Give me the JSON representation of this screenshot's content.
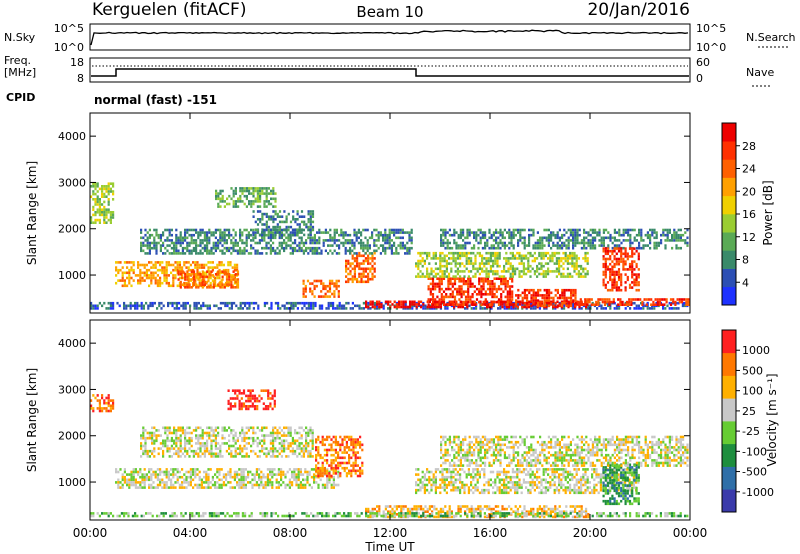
{
  "header": {
    "station": "Kerguelen (fitACF)",
    "beam": "Beam 10",
    "date": "20/Jan/2016"
  },
  "panels": {
    "noise": {
      "left_label": "N.Sky",
      "right_label": "N.Search",
      "left_ticks": [
        "10^5",
        "10^0"
      ],
      "right_ticks": [
        "10^5",
        "10^0"
      ]
    },
    "freq": {
      "left_label_1": "Freq.",
      "left_label_2": "[MHz]",
      "right_label": "Nave",
      "left_ticks": [
        "18",
        "8"
      ],
      "right_ticks": [
        "60",
        "0"
      ]
    },
    "cpid": {
      "label": "CPID",
      "value": "normal (fast) -151"
    }
  },
  "chart_data": [
    {
      "type": "heatmap",
      "name": "power",
      "ylabel": "Slant Range [km]",
      "ylim": [
        180,
        4500
      ],
      "yticks": [
        "1000",
        "2000",
        "3000",
        "4000"
      ],
      "xlim": [
        0,
        24
      ],
      "colorbar": {
        "label": "Power [dB]",
        "ticks": [
          "28",
          "24",
          "20",
          "16",
          "12",
          "8",
          "4"
        ],
        "colors": [
          "#1e32ff",
          "#2c4fb4",
          "#3a8a6a",
          "#5aaa55",
          "#9acd32",
          "#f0d000",
          "#ffa000",
          "#ff6000",
          "#ff3000",
          "#ee0000"
        ]
      },
      "regions": [
        {
          "t": [
            0.0,
            24.0
          ],
          "r": [
            200,
            420
          ],
          "level": 1
        },
        {
          "t": [
            11.0,
            20.0
          ],
          "r": [
            250,
            450
          ],
          "level": 9
        },
        {
          "t": [
            13.5,
            17.0
          ],
          "r": [
            300,
            950
          ],
          "level": 8
        },
        {
          "t": [
            17.0,
            19.5
          ],
          "r": [
            300,
            700
          ],
          "level": 8
        },
        {
          "t": [
            19.5,
            24.0
          ],
          "r": [
            300,
            500
          ],
          "level": 8
        },
        {
          "t": [
            1.0,
            6.0
          ],
          "r": [
            700,
            1300
          ],
          "level": 6
        },
        {
          "t": [
            3.5,
            6.0
          ],
          "r": [
            700,
            1100
          ],
          "level": 7
        },
        {
          "t": [
            8.5,
            10.0
          ],
          "r": [
            500,
            900
          ],
          "level": 7
        },
        {
          "t": [
            10.2,
            11.5
          ],
          "r": [
            800,
            1500
          ],
          "level": 7
        },
        {
          "t": [
            13.0,
            20.0
          ],
          "r": [
            900,
            1500
          ],
          "level": 4
        },
        {
          "t": [
            5.0,
            7.5
          ],
          "r": [
            2400,
            2900
          ],
          "level": 3
        },
        {
          "t": [
            0.0,
            1.0
          ],
          "r": [
            2100,
            3000
          ],
          "level": 4
        },
        {
          "t": [
            6.5,
            9.0
          ],
          "r": [
            1800,
            2400
          ],
          "level": 2
        },
        {
          "t": [
            2.0,
            13.0
          ],
          "r": [
            1400,
            2000
          ],
          "level": 2
        },
        {
          "t": [
            14.0,
            24.0
          ],
          "r": [
            1500,
            2000
          ],
          "level": 2
        },
        {
          "t": [
            20.5,
            22.0
          ],
          "r": [
            600,
            1600
          ],
          "level": 8
        }
      ]
    },
    {
      "type": "heatmap",
      "name": "velocity",
      "ylabel": "Slant Range [km]",
      "ylim": [
        180,
        4500
      ],
      "yticks": [
        "1000",
        "2000",
        "3000",
        "4000"
      ],
      "xlabel": "Time UT",
      "xlim": [
        0,
        24
      ],
      "xticks": [
        "00:00",
        "04:00",
        "08:00",
        "12:00",
        "16:00",
        "20:00",
        "00:00"
      ],
      "colorbar": {
        "label": "Velocity [m s⁻¹]",
        "ticks": [
          "1000",
          "500",
          "100",
          "25",
          "-25",
          "-100",
          "-500",
          "-1000"
        ],
        "colors": [
          "#3a3aaa",
          "#2f6fa8",
          "#1e8e3e",
          "#66cc33",
          "#c8c8c8",
          "#ffb000",
          "#ff7800",
          "#ff2020"
        ]
      },
      "regions": [
        {
          "t": [
            11.0,
            20.0
          ],
          "r": [
            200,
            500
          ],
          "level": 5
        },
        {
          "t": [
            0.0,
            24.0
          ],
          "r": [
            200,
            350
          ],
          "level": 3
        },
        {
          "t": [
            1.0,
            10.0
          ],
          "r": [
            800,
            1300
          ],
          "level": 4
        },
        {
          "t": [
            13.0,
            22.0
          ],
          "r": [
            700,
            1300
          ],
          "level": 4
        },
        {
          "t": [
            0.0,
            1.0
          ],
          "r": [
            2500,
            2900
          ],
          "level": 6
        },
        {
          "t": [
            5.5,
            7.5
          ],
          "r": [
            2500,
            3000
          ],
          "level": 7
        },
        {
          "t": [
            9.0,
            11.0
          ],
          "r": [
            1100,
            2000
          ],
          "level": 6
        },
        {
          "t": [
            2.0,
            9.0
          ],
          "r": [
            1500,
            2200
          ],
          "level": 4
        },
        {
          "t": [
            20.5,
            22.0
          ],
          "r": [
            500,
            1400
          ],
          "level": 2
        },
        {
          "t": [
            14.0,
            24.0
          ],
          "r": [
            1300,
            2000
          ],
          "level": 4
        }
      ]
    }
  ]
}
